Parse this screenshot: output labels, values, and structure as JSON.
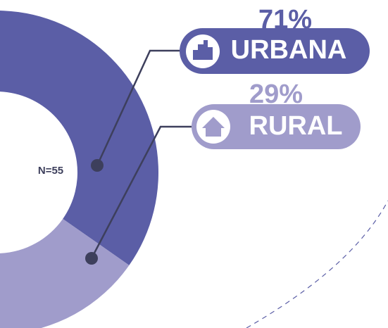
{
  "chart_data": {
    "type": "donut",
    "categories": [
      "URBANA",
      "RURAL"
    ],
    "values": [
      71,
      29
    ],
    "value_labels": [
      "71%",
      "29%"
    ],
    "colors": [
      "#5b5ea6",
      "#a09ccb"
    ],
    "center_label": "N=55"
  }
}
